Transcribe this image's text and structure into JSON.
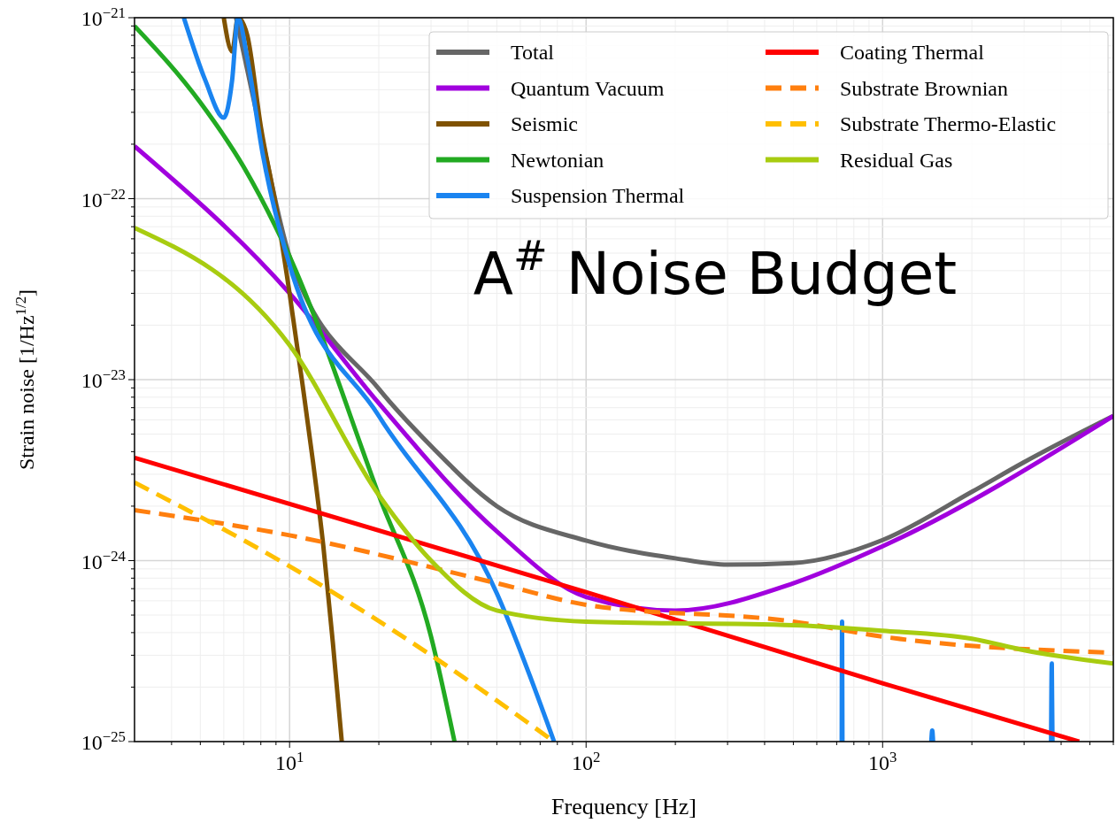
{
  "chart_data": {
    "type": "line",
    "xlabel": "Frequency [Hz]",
    "ylabel": "Strain noise [1/Hz$^{1/2}$]",
    "annotations": [
      "A$^{#}$ Noise Budget"
    ],
    "log": "xy",
    "grid": true,
    "legend": "top right",
    "xlim": [
      3,
      6000
    ],
    "ylim": [
      1e-25,
      1e-21
    ],
    "xticks": [
      {
        "value": 4,
        "label": null
      },
      {
        "value": 5,
        "label": null
      },
      {
        "value": 6,
        "label": null
      },
      {
        "value": 7,
        "label": null
      },
      {
        "value": 8,
        "label": null
      },
      {
        "value": 9,
        "label": null
      },
      {
        "value": 10,
        "label": "10$^{1}$"
      },
      {
        "value": 20,
        "label": null
      },
      {
        "value": 30,
        "label": null
      },
      {
        "value": 40,
        "label": null
      },
      {
        "value": 50,
        "label": null
      },
      {
        "value": 60,
        "label": null
      },
      {
        "value": 70,
        "label": null
      },
      {
        "value": 80,
        "label": null
      },
      {
        "value": 90,
        "label": null
      },
      {
        "value": 100,
        "label": "10$^{2}$"
      },
      {
        "value": 200,
        "label": null
      },
      {
        "value": 300,
        "label": null
      },
      {
        "value": 400,
        "label": null
      },
      {
        "value": 500,
        "label": null
      },
      {
        "value": 600,
        "label": null
      },
      {
        "value": 700,
        "label": null
      },
      {
        "value": 800,
        "label": null
      },
      {
        "value": 900,
        "label": null
      },
      {
        "value": 1000,
        "label": "10$^{3}$"
      },
      {
        "value": 2000,
        "label": null
      },
      {
        "value": 3000,
        "label": null
      },
      {
        "value": 4000,
        "label": null
      },
      {
        "value": 5000,
        "label": null
      },
      {
        "value": 6000,
        "label": null
      }
    ],
    "yticks": [
      {
        "value": 1e-25,
        "label": "10$^{−25}$"
      },
      {
        "value": 2e-25,
        "label": null
      },
      {
        "value": 3e-25,
        "label": null
      },
      {
        "value": 4e-25,
        "label": null
      },
      {
        "value": 5e-25,
        "label": null
      },
      {
        "value": 6e-25,
        "label": null
      },
      {
        "value": 7e-25,
        "label": null
      },
      {
        "value": 8e-25,
        "label": null
      },
      {
        "value": 9e-25,
        "label": null
      },
      {
        "value": 1e-24,
        "label": "10$^{−24}$"
      },
      {
        "value": 2e-24,
        "label": null
      },
      {
        "value": 3e-24,
        "label": null
      },
      {
        "value": 4e-24,
        "label": null
      },
      {
        "value": 5e-24,
        "label": null
      },
      {
        "value": 6e-24,
        "label": null
      },
      {
        "value": 7e-24,
        "label": null
      },
      {
        "value": 8e-24,
        "label": null
      },
      {
        "value": 9e-24,
        "label": null
      },
      {
        "value": 1e-23,
        "label": "10$^{−23}$"
      },
      {
        "value": 2e-23,
        "label": null
      },
      {
        "value": 3e-23,
        "label": null
      },
      {
        "value": 4e-23,
        "label": null
      },
      {
        "value": 5e-23,
        "label": null
      },
      {
        "value": 6e-23,
        "label": null
      },
      {
        "value": 7e-23,
        "label": null
      },
      {
        "value": 8e-23,
        "label": null
      },
      {
        "value": 9e-23,
        "label": null
      },
      {
        "value": 1e-22,
        "label": "10$^{−22}$"
      },
      {
        "value": 2e-22,
        "label": null
      },
      {
        "value": 3e-22,
        "label": null
      },
      {
        "value": 4e-22,
        "label": null
      },
      {
        "value": 5e-22,
        "label": null
      },
      {
        "value": 6e-22,
        "label": null
      },
      {
        "value": 7e-22,
        "label": null
      },
      {
        "value": 8e-22,
        "label": null
      },
      {
        "value": 9e-22,
        "label": null
      },
      {
        "value": 1e-21,
        "label": "10$^{−21}$"
      }
    ],
    "series": [
      {
        "name": "Total",
        "color": "#666666",
        "line_style": "solid",
        "x": [
          6.6,
          8.1,
          10,
          20,
          30,
          50,
          100,
          200,
          300,
          500,
          1000,
          2000,
          3000,
          6000
        ],
        "values": [
          1e-21,
          2.1e-22,
          4.8e-23,
          8.9e-24,
          4.3e-24,
          2e-24,
          1.29e-24,
          1.03e-24,
          9.5e-25,
          9.7e-25,
          1.3e-24,
          2.4e-24,
          3.5e-24,
          6.3e-24
        ]
      },
      {
        "name": "Quantum Vacuum",
        "color": "#a100de",
        "line_style": "solid",
        "x": [
          3,
          10,
          20,
          50,
          100,
          200,
          500,
          1000,
          6000
        ],
        "values": [
          1.95e-22,
          3e-23,
          7.4e-24,
          1.45e-24,
          6.3e-25,
          5.3e-25,
          7.5e-25,
          1.2e-24,
          6.3e-24
        ]
      },
      {
        "name": "Seismic",
        "color": "#7f5200",
        "line_style": "solid",
        "x": [
          6.0,
          6.4,
          6.7,
          7.2,
          8,
          9,
          10,
          11,
          12,
          13,
          14,
          15
        ],
        "values": [
          1e-21,
          6.5e-22,
          1e-21,
          8e-22,
          2.5e-22,
          9e-23,
          3e-23,
          1e-23,
          3.5e-24,
          1.2e-24,
          3.5e-25,
          1e-25
        ]
      },
      {
        "name": "Newtonian",
        "color": "#22aa22",
        "line_style": "solid",
        "x": [
          3,
          5,
          7,
          10,
          20,
          30,
          36
        ],
        "values": [
          9e-22,
          3.4e-22,
          1.5e-22,
          4.8e-23,
          2.3e-24,
          3.8e-25,
          1e-25
        ]
      },
      {
        "name": "Suspension Thermal",
        "color": "#1a84f0",
        "line_style": "solid",
        "x": [
          4.4,
          5.2,
          6,
          6.4,
          6.7,
          7.2,
          8.1,
          10,
          20,
          50,
          78,
          79,
          728,
          730,
          732,
          733,
          1460,
          1470,
          1480,
          1481,
          3700,
          3720,
          3740
        ],
        "values": [
          1e-21,
          4.5e-22,
          2.8e-22,
          4.5e-22,
          1e-21,
          6e-22,
          1.8e-22,
          4.3e-23,
          6.3e-24,
          6.6e-25,
          1e-25,
          null,
          1e-25,
          4.6e-25,
          1e-25,
          null,
          1e-25,
          1.15e-25,
          1e-25,
          null,
          1e-25,
          2.7e-25,
          1e-25
        ]
      },
      {
        "name": "Coating Thermal",
        "color": "#ff0000",
        "line_style": "solid",
        "x": [
          3,
          100,
          1000,
          4600
        ],
        "values": [
          3.7e-24,
          6.7e-25,
          2.1e-25,
          1e-25
        ]
      },
      {
        "name": "Substrate Brownian",
        "color": "#ff7f0e",
        "line_style": "dashed",
        "x": [
          3,
          10,
          50,
          100,
          500,
          1000,
          6000
        ],
        "values": [
          1.9e-24,
          1.38e-24,
          7.5e-25,
          5.7e-25,
          4.6e-25,
          3.8e-25,
          3.1e-25
        ]
      },
      {
        "name": "Substrate Thermo-Elastic",
        "color": "#ffbf00",
        "line_style": "dashed",
        "x": [
          3,
          10,
          30,
          78
        ],
        "values": [
          2.7e-24,
          9.3e-25,
          3e-25,
          1e-25
        ]
      },
      {
        "name": "Residual Gas",
        "color": "#a8cc10",
        "line_style": "solid",
        "x": [
          3,
          10,
          20,
          30,
          50,
          100,
          500,
          1000,
          2000,
          3000,
          6000
        ],
        "values": [
          6.9e-23,
          1.55e-23,
          2.3e-24,
          1e-24,
          5.3e-25,
          4.6e-25,
          4.4e-25,
          4.1e-25,
          3.7e-25,
          3.2e-25,
          2.7e-25
        ]
      }
    ]
  }
}
